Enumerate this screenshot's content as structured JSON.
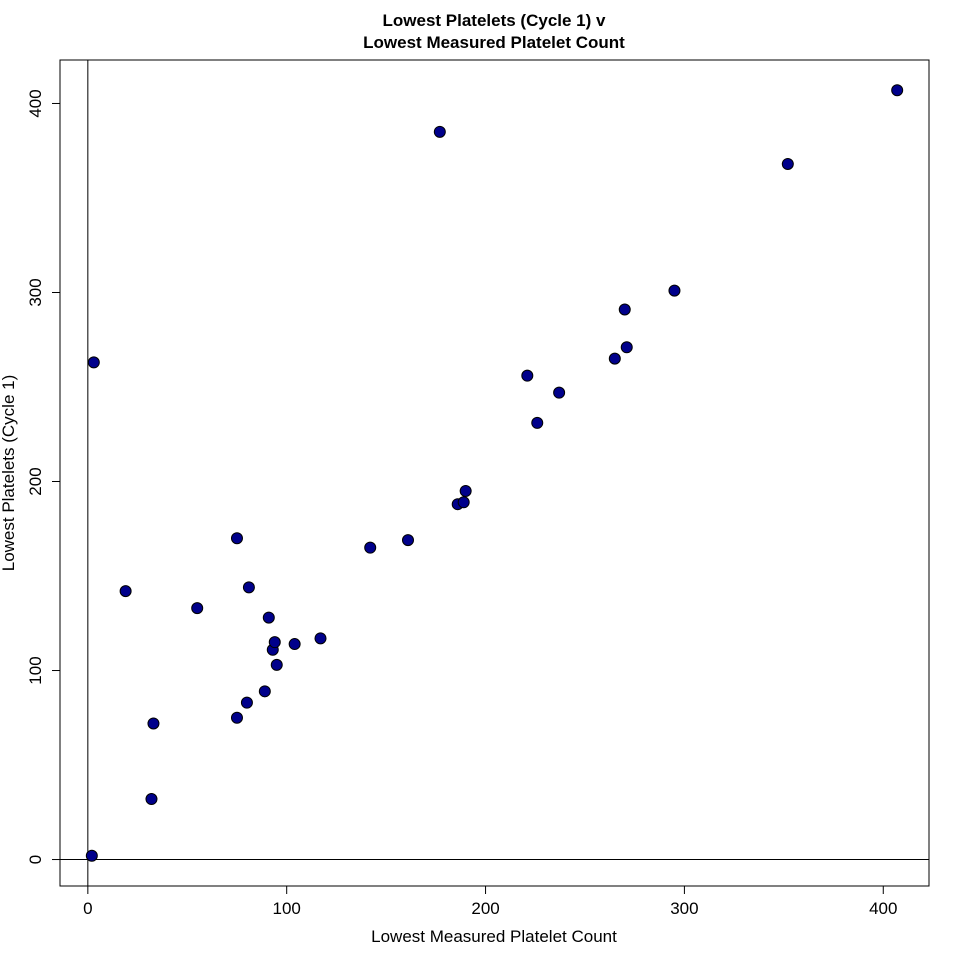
{
  "chart_data": {
    "type": "scatter",
    "title_line1": "Lowest Platelets (Cycle 1) v",
    "title_line2": "Lowest Measured Platelet Count",
    "xlabel": "Lowest Measured Platelet Count",
    "ylabel": "Lowest Platelets (Cycle 1)",
    "xlim": [
      -14,
      423
    ],
    "ylim": [
      -14,
      423
    ],
    "xticks": [
      0,
      100,
      200,
      300,
      400
    ],
    "yticks": [
      0,
      100,
      200,
      300,
      400
    ],
    "reference_lines": {
      "vertical_x": 0,
      "horizontal_y": 0
    },
    "marker_color": "#00008B",
    "grid": false,
    "points": [
      {
        "x": 2,
        "y": 2
      },
      {
        "x": 3,
        "y": 263
      },
      {
        "x": 19,
        "y": 142
      },
      {
        "x": 32,
        "y": 32
      },
      {
        "x": 33,
        "y": 72
      },
      {
        "x": 55,
        "y": 133
      },
      {
        "x": 75,
        "y": 170
      },
      {
        "x": 75,
        "y": 75
      },
      {
        "x": 80,
        "y": 83
      },
      {
        "x": 81,
        "y": 144
      },
      {
        "x": 89,
        "y": 89
      },
      {
        "x": 91,
        "y": 128
      },
      {
        "x": 93,
        "y": 111
      },
      {
        "x": 94,
        "y": 115
      },
      {
        "x": 95,
        "y": 103
      },
      {
        "x": 104,
        "y": 114
      },
      {
        "x": 117,
        "y": 117
      },
      {
        "x": 142,
        "y": 165
      },
      {
        "x": 161,
        "y": 169
      },
      {
        "x": 177,
        "y": 385
      },
      {
        "x": 186,
        "y": 188
      },
      {
        "x": 189,
        "y": 189
      },
      {
        "x": 190,
        "y": 195
      },
      {
        "x": 221,
        "y": 256
      },
      {
        "x": 226,
        "y": 231
      },
      {
        "x": 237,
        "y": 247
      },
      {
        "x": 265,
        "y": 265
      },
      {
        "x": 270,
        "y": 291
      },
      {
        "x": 271,
        "y": 271
      },
      {
        "x": 295,
        "y": 301
      },
      {
        "x": 352,
        "y": 368
      },
      {
        "x": 407,
        "y": 407
      }
    ]
  }
}
